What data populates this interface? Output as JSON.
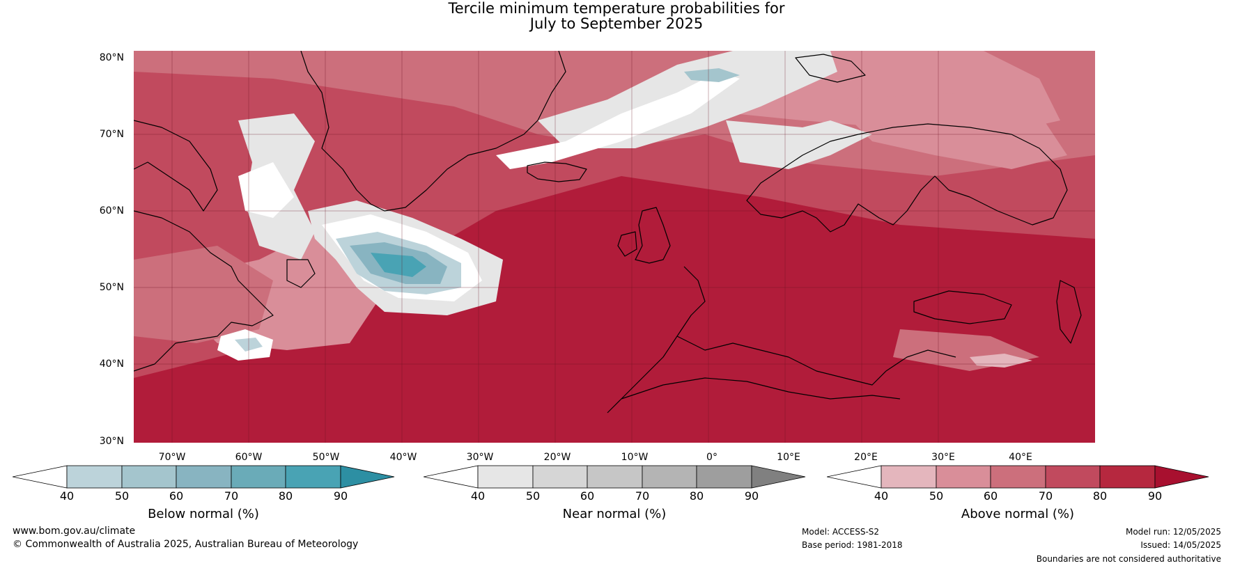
{
  "title_line1": "Tercile minimum temperature probabilities for",
  "title_line2": "July to September 2025",
  "lat_labels": [
    "80°N",
    "70°N",
    "60°N",
    "50°N",
    "40°N",
    "30°N"
  ],
  "lon_labels": [
    "70°W",
    "60°W",
    "50°W",
    "40°W",
    "30°W",
    "20°W",
    "10°W",
    "0°",
    "10°E",
    "20°E",
    "30°E",
    "40°E"
  ],
  "colorbars": [
    {
      "label": "Below normal (%)",
      "ticks": [
        "40",
        "50",
        "60",
        "70",
        "80",
        "90"
      ],
      "colors": [
        "#ffffff",
        "#bcd3da",
        "#a4c5cd",
        "#88b4c1",
        "#6aabb8",
        "#49a3b4",
        "#2d8fa3"
      ]
    },
    {
      "label": "Near normal (%)",
      "ticks": [
        "40",
        "50",
        "60",
        "70",
        "80",
        "90"
      ],
      "colors": [
        "#ffffff",
        "#e6e6e6",
        "#d6d6d6",
        "#c6c6c6",
        "#b4b4b4",
        "#9e9e9e",
        "#808080"
      ]
    },
    {
      "label": "Above normal (%)",
      "ticks": [
        "40",
        "50",
        "60",
        "70",
        "80",
        "90"
      ],
      "colors": [
        "#ffffff",
        "#e4b6bd",
        "#d98e99",
        "#cc6f7c",
        "#c14a5e",
        "#b6283f",
        "#a8102f"
      ]
    }
  ],
  "footer": {
    "url": "www.bom.gov.au/climate",
    "copyright": "© Commonwealth of Australia 2025, Australian Bureau of Meteorology",
    "model": "Model: ACCESS-S2",
    "base_period": "Base period: 1981-2018",
    "model_run": "Model run: 12/05/2025",
    "issued": "Issued: 14/05/2025",
    "disclaimer": "Boundaries are not considered authoritative"
  }
}
